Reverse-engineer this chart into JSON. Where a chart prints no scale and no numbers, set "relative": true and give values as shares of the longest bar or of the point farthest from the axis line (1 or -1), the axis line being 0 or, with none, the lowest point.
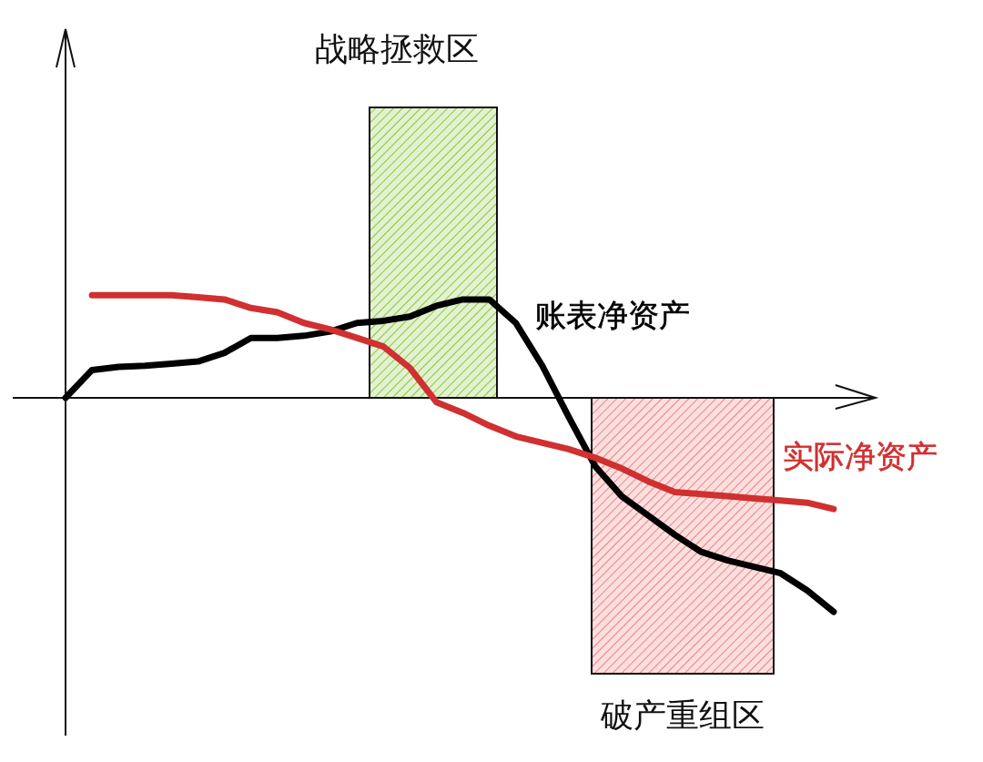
{
  "chart_data": {
    "type": "line",
    "relative": true,
    "categories": [
      null,
      null,
      null,
      null,
      null,
      null,
      null,
      null,
      null,
      null,
      null,
      null,
      null,
      null,
      null,
      null,
      null,
      null,
      null,
      null,
      null,
      null,
      null,
      null,
      null,
      null,
      null,
      null,
      null,
      null
    ],
    "series": [
      {
        "name": "账表净资产",
        "color": "#000000",
        "values": [
          0,
          0.13,
          0.145,
          0.15,
          0.16,
          0.17,
          0.21,
          0.28,
          0.28,
          0.29,
          0.31,
          0.35,
          0.36,
          0.38,
          0.43,
          0.46,
          0.46,
          0.35,
          0.15,
          -0.09,
          -0.32,
          -0.46,
          -0.55,
          -0.64,
          -0.72,
          -0.76,
          -0.79,
          -0.82,
          -0.9,
          -1
        ]
      },
      {
        "name": "实际净资产",
        "color": "#d03030",
        "values": [
          null,
          0.48,
          0.48,
          0.48,
          0.48,
          0.47,
          0.46,
          0.42,
          0.4,
          0.35,
          0.32,
          0.28,
          0.24,
          0.14,
          -0.02,
          -0.07,
          -0.13,
          -0.18,
          -0.21,
          -0.24,
          -0.28,
          -0.33,
          -0.39,
          -0.44,
          -0.45,
          -0.46,
          -0.47,
          -0.48,
          -0.49,
          -0.52
        ]
      }
    ],
    "annotations": [
      "战略拯救区",
      "破产重组区"
    ]
  }
}
